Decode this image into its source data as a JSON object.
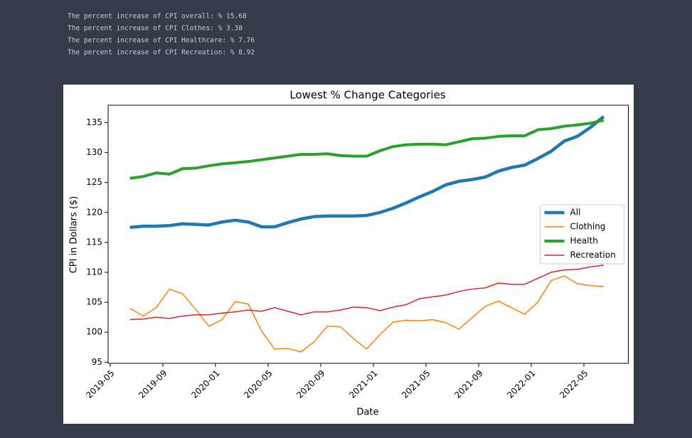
{
  "output_lines": [
    "The percent increase of CPI overall: % 15.68",
    "The percent increase of CPI Clothes: % 3.38",
    "The percent increase of CPI Healthcare: % 7.76",
    "The percent increase of CPI Recreation: % 8.92"
  ],
  "chart_data": {
    "type": "line",
    "title": "Lowest % Change Categories",
    "x_label": "Date",
    "y_label": "CPI in Dollars ($)",
    "x": [
      "2019-06",
      "2019-07",
      "2019-08",
      "2019-09",
      "2019-10",
      "2019-11",
      "2019-12",
      "2020-01",
      "2020-02",
      "2020-03",
      "2020-04",
      "2020-05",
      "2020-06",
      "2020-07",
      "2020-08",
      "2020-09",
      "2020-10",
      "2020-11",
      "2020-12",
      "2021-01",
      "2021-02",
      "2021-03",
      "2021-04",
      "2021-05",
      "2021-06",
      "2021-07",
      "2021-08",
      "2021-09",
      "2021-10",
      "2021-11",
      "2021-12",
      "2022-01",
      "2022-02",
      "2022-03",
      "2022-04",
      "2022-05",
      "2022-06"
    ],
    "series": [
      {
        "name": "All",
        "color": "#1f77b4",
        "linewidth": 4.5,
        "values": [
          117.5,
          117.7,
          117.7,
          117.8,
          118.1,
          118.0,
          117.9,
          118.4,
          118.7,
          118.4,
          117.6,
          117.6,
          118.3,
          118.9,
          119.3,
          119.4,
          119.4,
          119.4,
          119.5,
          120.0,
          120.7,
          121.6,
          122.6,
          123.5,
          124.6,
          125.2,
          125.5,
          125.9,
          126.9,
          127.5,
          127.9,
          129.0,
          130.2,
          131.9,
          132.7,
          134.2,
          136.0
        ]
      },
      {
        "name": "Clothing",
        "color": "#ff7f0e",
        "linewidth": 1.5,
        "values": [
          104.0,
          102.7,
          104.1,
          107.2,
          106.4,
          103.8,
          101.0,
          102.1,
          105.1,
          104.7,
          100.2,
          97.2,
          97.3,
          96.7,
          98.4,
          101.0,
          100.9,
          98.9,
          97.2,
          99.6,
          101.7,
          102.0,
          101.9,
          102.1,
          101.6,
          100.5,
          102.4,
          104.3,
          105.2,
          104.1,
          103.0,
          105.0,
          108.6,
          109.4,
          108.1,
          107.8,
          107.6
        ]
      },
      {
        "name": "Health",
        "color": "#2ca02c",
        "linewidth": 4,
        "values": [
          125.7,
          126.0,
          126.6,
          126.4,
          127.3,
          127.4,
          127.8,
          128.1,
          128.3,
          128.5,
          128.8,
          129.1,
          129.4,
          129.7,
          129.7,
          129.8,
          129.5,
          129.4,
          129.4,
          130.3,
          131.0,
          131.3,
          131.4,
          131.4,
          131.3,
          131.8,
          132.3,
          132.4,
          132.7,
          132.8,
          132.8,
          133.8,
          134.0,
          134.4,
          134.6,
          134.9,
          135.4
        ]
      },
      {
        "name": "Recreation",
        "color": "#d62728",
        "linewidth": 1.5,
        "values": [
          102.1,
          102.2,
          102.5,
          102.3,
          102.7,
          102.9,
          102.9,
          103.2,
          103.4,
          103.7,
          103.5,
          104.1,
          103.5,
          102.9,
          103.4,
          103.4,
          103.7,
          104.2,
          104.1,
          103.6,
          104.2,
          104.6,
          105.6,
          105.9,
          106.2,
          106.8,
          107.2,
          107.4,
          108.2,
          108.0,
          108.0,
          109.0,
          110.0,
          110.4,
          110.5,
          110.9,
          111.2
        ]
      }
    ],
    "xlim": [
      "2019-05",
      "2022-08"
    ],
    "xticks": [
      "2019-05",
      "2019-09",
      "2020-01",
      "2020-05",
      "2020-09",
      "2021-01",
      "2021-05",
      "2021-09",
      "2022-01",
      "2022-05"
    ],
    "ylim": [
      94.8,
      137.9
    ],
    "yticks": [
      95,
      100,
      105,
      110,
      115,
      120,
      125,
      130,
      135
    ],
    "legend": "center right",
    "grid": false
  }
}
